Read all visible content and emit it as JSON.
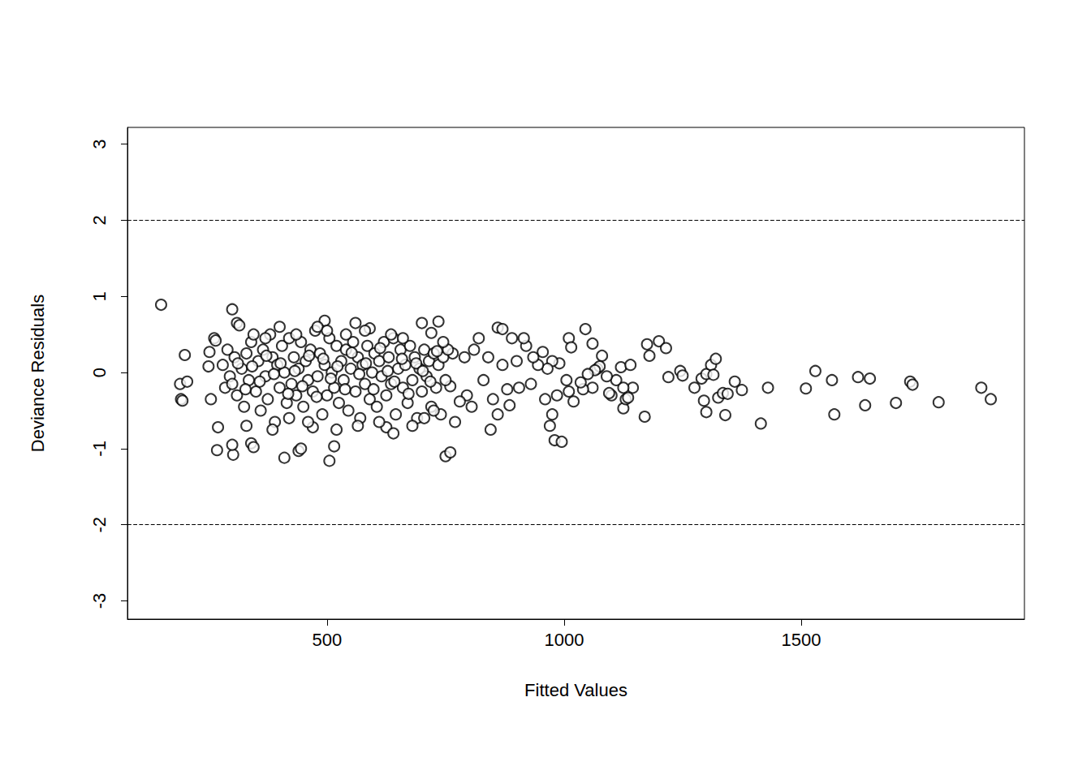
{
  "chart_data": {
    "type": "scatter",
    "x_label": "Fitted Values",
    "y_label": "Deviance Residuals",
    "color": "#000000",
    "marker": "circle",
    "line_style": "dashed",
    "hlines": [
      -2,
      2
    ],
    "xlim": [
      79,
      1971
    ],
    "xticks": [
      500,
      1000,
      1500
    ],
    "ylim": [
      -3.24,
      3.22
    ],
    "yticks": [
      -3,
      -2,
      -1,
      0,
      1,
      2,
      3
    ],
    "grid": false,
    "x": [
      150,
      190,
      192,
      195,
      200,
      205,
      250,
      252,
      255,
      262,
      265,
      268,
      270,
      300,
      302,
      300,
      310,
      315,
      340,
      345,
      380,
      410,
      440,
      445,
      470,
      495,
      505,
      515,
      560,
      590,
      625,
      640,
      700,
      720,
      735,
      750,
      760,
      860,
      870,
      845,
      970,
      975,
      980,
      995,
      1010,
      1045,
      1060,
      1080,
      1175,
      1180,
      1170,
      1200,
      1215,
      1220,
      1245,
      1250,
      1275,
      1290,
      1295,
      1300,
      1300,
      1310,
      1320,
      1315,
      1325,
      1335,
      1340,
      1345,
      1360,
      1375,
      1415,
      1430,
      1510,
      1530,
      1565,
      1570,
      1620,
      1635,
      1645,
      1700,
      1730,
      1735,
      1790,
      1880,
      1900,
      1110,
      1100,
      1120,
      1125,
      1130,
      1135,
      1140,
      1145,
      1125,
      1090,
      1095,
      1070,
      1075,
      1065,
      1060,
      1050,
      1040,
      1035,
      1020,
      1015,
      1010,
      1005,
      990,
      985,
      975,
      965,
      960,
      955,
      945,
      935,
      930,
      920,
      915,
      905,
      900,
      890,
      885,
      880,
      870,
      860,
      850,
      840,
      830,
      820,
      810,
      805,
      795,
      790,
      780,
      770,
      765,
      760,
      280,
      285,
      290,
      295,
      305,
      310,
      320,
      325,
      330,
      335,
      340,
      350,
      355,
      360,
      365,
      370,
      375,
      385,
      390,
      395,
      400,
      405,
      410,
      415,
      420,
      425,
      430,
      435,
      440,
      445,
      450,
      455,
      460,
      465,
      470,
      475,
      480,
      485,
      490,
      495,
      500,
      505,
      510,
      515,
      520,
      525,
      530,
      535,
      540,
      545,
      550,
      555,
      560,
      565,
      570,
      575,
      580,
      585,
      590,
      595,
      600,
      605,
      610,
      615,
      620,
      625,
      630,
      635,
      640,
      645,
      650,
      655,
      660,
      665,
      670,
      675,
      680,
      685,
      690,
      695,
      700,
      705,
      710,
      715,
      720,
      725,
      730,
      735,
      740,
      745,
      750,
      755,
      330,
      345,
      370,
      385,
      400,
      420,
      435,
      460,
      480,
      500,
      520,
      540,
      565,
      580,
      610,
      635,
      660,
      680,
      705,
      725,
      745,
      300,
      312,
      328,
      342,
      358,
      372,
      388,
      402,
      418,
      432,
      448,
      462,
      478,
      492,
      508,
      522,
      538,
      552,
      568,
      582,
      598,
      612,
      628,
      642,
      658,
      672,
      688,
      702,
      718,
      732
    ],
    "values": [
      0.89,
      -0.15,
      -0.35,
      -0.37,
      0.23,
      -0.12,
      0.08,
      0.27,
      -0.35,
      0.45,
      0.42,
      -1.02,
      -0.72,
      0.83,
      -1.08,
      -0.95,
      0.65,
      0.62,
      -0.93,
      -0.98,
      0.5,
      -1.12,
      -1.03,
      -1.0,
      -0.72,
      0.68,
      -1.16,
      -0.97,
      0.65,
      0.58,
      -0.72,
      -0.8,
      0.65,
      0.52,
      0.67,
      -1.1,
      -1.05,
      0.59,
      0.57,
      -0.75,
      -0.7,
      -0.55,
      -0.89,
      -0.91,
      0.45,
      0.57,
      0.38,
      0.22,
      0.37,
      0.22,
      -0.58,
      0.41,
      0.32,
      -0.06,
      0.02,
      -0.04,
      -0.2,
      -0.08,
      -0.37,
      -0.02,
      -0.52,
      0.1,
      0.18,
      -0.03,
      -0.33,
      -0.27,
      -0.56,
      -0.28,
      -0.12,
      -0.23,
      -0.67,
      -0.2,
      -0.21,
      0.02,
      -0.1,
      -0.55,
      -0.06,
      -0.43,
      -0.08,
      -0.4,
      -0.12,
      -0.16,
      -0.39,
      -0.2,
      -0.35,
      -0.1,
      -0.3,
      0.07,
      -0.47,
      -0.35,
      -0.33,
      0.1,
      -0.2,
      -0.2,
      -0.05,
      -0.27,
      0.05,
      0.08,
      0.03,
      -0.2,
      -0.02,
      -0.22,
      -0.13,
      -0.38,
      0.33,
      -0.25,
      -0.1,
      0.12,
      -0.3,
      0.15,
      0.05,
      -0.35,
      0.27,
      0.1,
      0.2,
      -0.15,
      0.35,
      0.45,
      -0.2,
      0.15,
      0.45,
      -0.43,
      -0.22,
      0.1,
      -0.55,
      -0.35,
      0.2,
      -0.1,
      0.45,
      0.3,
      -0.45,
      -0.3,
      0.2,
      -0.38,
      -0.65,
      0.25,
      -0.18,
      0.1,
      -0.2,
      0.3,
      -0.05,
      0.2,
      -0.3,
      0.05,
      -0.45,
      0.25,
      -0.1,
      0.4,
      -0.25,
      0.15,
      -0.5,
      0.3,
      -0.05,
      -0.35,
      0.2,
      -0.65,
      0.1,
      -0.2,
      0.35,
      0.0,
      -0.4,
      0.45,
      -0.15,
      0.2,
      -0.3,
      0.05,
      0.4,
      -0.45,
      0.15,
      -0.1,
      0.3,
      -0.25,
      0.55,
      -0.05,
      0.25,
      -0.55,
      0.1,
      -0.3,
      0.45,
      0.0,
      -0.2,
      0.35,
      -0.4,
      0.15,
      -0.1,
      0.3,
      -0.5,
      0.05,
      0.4,
      -0.25,
      0.2,
      -0.6,
      0.1,
      -0.15,
      0.35,
      -0.35,
      0.0,
      0.25,
      -0.45,
      0.15,
      -0.05,
      0.4,
      -0.3,
      0.2,
      -0.15,
      0.45,
      -0.55,
      0.05,
      0.3,
      -0.2,
      0.1,
      -0.4,
      0.35,
      -0.1,
      0.2,
      -0.6,
      0.05,
      -0.25,
      0.3,
      -0.05,
      0.15,
      -0.45,
      0.25,
      -0.2,
      0.1,
      -0.55,
      0.2,
      -0.1,
      0.3,
      -0.7,
      0.5,
      0.45,
      -0.75,
      0.6,
      -0.6,
      0.5,
      -0.65,
      0.6,
      0.55,
      -0.75,
      0.5,
      -0.7,
      0.55,
      -0.65,
      0.5,
      0.45,
      -0.7,
      -0.6,
      -0.5,
      0.4,
      -0.15,
      0.12,
      -0.22,
      0.08,
      -0.12,
      0.22,
      -0.02,
      0.12,
      -0.28,
      0.02,
      -0.18,
      0.22,
      -0.32,
      0.18,
      -0.08,
      0.08,
      -0.22,
      0.26,
      -0.02,
      0.12,
      -0.22,
      0.32,
      0.02,
      -0.12,
      0.18,
      -0.28,
      0.12,
      0.02,
      -0.12,
      0.28
    ]
  }
}
